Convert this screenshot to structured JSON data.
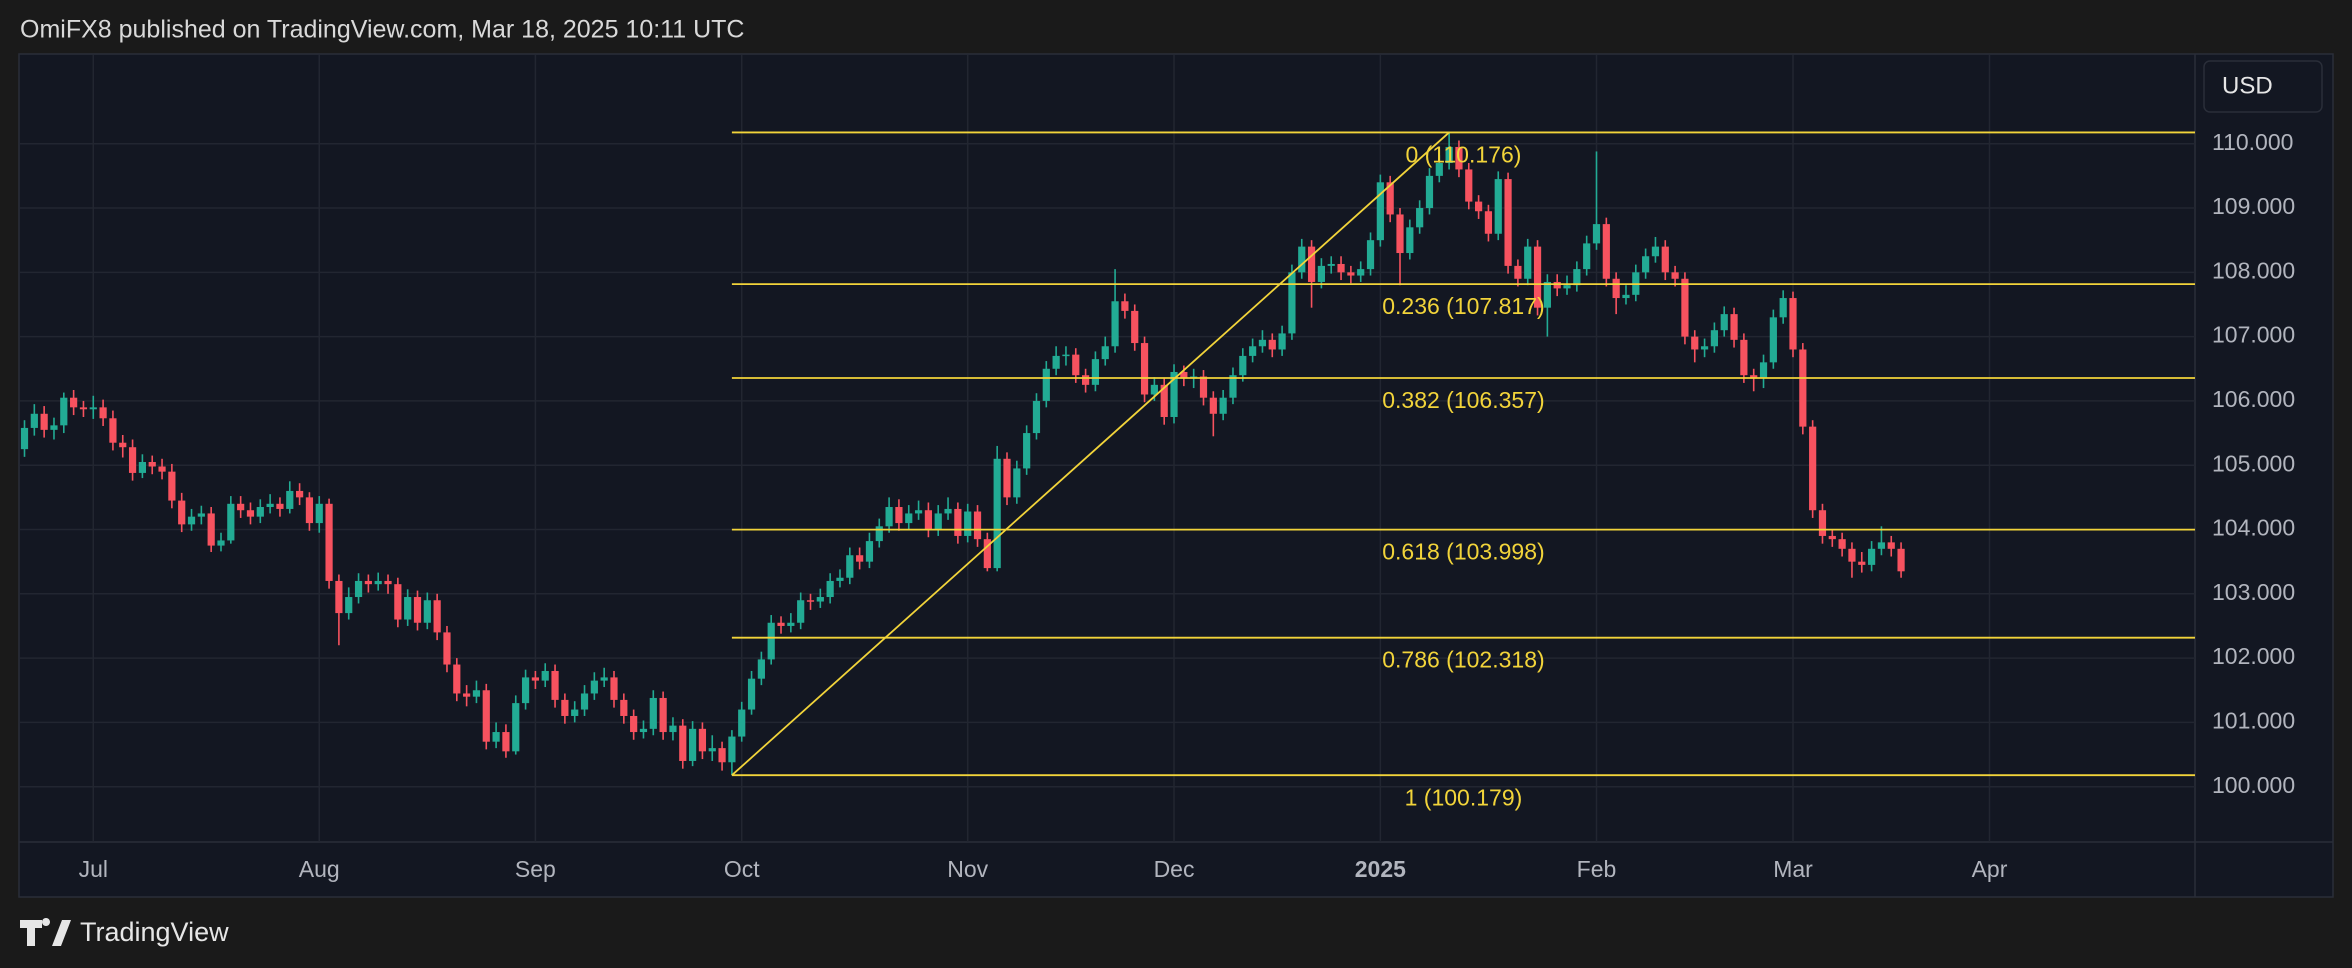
{
  "header": {
    "publisher": "OmiFX8 published on TradingView.com, Mar 18, 2025 10:11 UTC"
  },
  "currency": "USD",
  "footer": {
    "brand": "TradingView"
  },
  "chart_data": {
    "type": "candlestick",
    "up_color": "#22ab94",
    "down_color": "#f7525f",
    "fib_color": "#f2d43a",
    "grid": true,
    "ylim": [
      99.14,
      111.38
    ],
    "yticks": [
      {
        "value": 100,
        "label": "100.000"
      },
      {
        "value": 101,
        "label": "101.000"
      },
      {
        "value": 102,
        "label": "102.000"
      },
      {
        "value": 103,
        "label": "103.000"
      },
      {
        "value": 104,
        "label": "104.000"
      },
      {
        "value": 105,
        "label": "105.000"
      },
      {
        "value": 106,
        "label": "106.000"
      },
      {
        "value": 107,
        "label": "107.000"
      },
      {
        "value": 108,
        "label": "108.000"
      },
      {
        "value": 109,
        "label": "109.000"
      },
      {
        "value": 110,
        "label": "110.000"
      }
    ],
    "fib_levels": [
      {
        "value": 110.176,
        "label": "0 (110.176)"
      },
      {
        "value": 107.817,
        "label": "0.236 (107.817)"
      },
      {
        "value": 106.357,
        "label": "0.382 (106.357)"
      },
      {
        "value": 103.998,
        "label": "0.618 (103.998)"
      },
      {
        "value": 102.318,
        "label": "0.786 (102.318)"
      },
      {
        "value": 100.179,
        "label": "1 (100.179)"
      }
    ],
    "categories": [
      null,
      null,
      null,
      null,
      null,
      null,
      null,
      "Jul",
      null,
      null,
      null,
      null,
      null,
      null,
      null,
      null,
      null,
      null,
      null,
      null,
      null,
      null,
      null,
      null,
      null,
      null,
      null,
      null,
      null,
      null,
      "Aug",
      null,
      null,
      null,
      null,
      null,
      null,
      null,
      null,
      null,
      null,
      null,
      null,
      null,
      null,
      null,
      null,
      null,
      null,
      null,
      null,
      null,
      "Sep",
      null,
      null,
      null,
      null,
      null,
      null,
      null,
      null,
      null,
      null,
      null,
      null,
      null,
      null,
      null,
      null,
      null,
      null,
      null,
      null,
      "Oct",
      null,
      null,
      null,
      null,
      null,
      null,
      null,
      null,
      null,
      null,
      null,
      null,
      null,
      null,
      null,
      null,
      null,
      null,
      null,
      null,
      null,
      null,
      "Nov",
      null,
      null,
      null,
      null,
      null,
      null,
      null,
      null,
      null,
      null,
      null,
      null,
      null,
      null,
      null,
      null,
      null,
      null,
      null,
      null,
      "Dec",
      null,
      null,
      null,
      null,
      null,
      null,
      null,
      null,
      null,
      null,
      null,
      null,
      null,
      null,
      null,
      null,
      null,
      null,
      null,
      null,
      "2025",
      null,
      null,
      null,
      null,
      null,
      null,
      null,
      null,
      null,
      null,
      null,
      null,
      null,
      null,
      null,
      null,
      null,
      null,
      null,
      null,
      null,
      "Feb",
      null,
      null,
      null,
      null,
      null,
      null,
      null,
      null,
      null,
      null,
      null,
      null,
      null,
      null,
      null,
      null,
      null,
      null,
      null,
      "Mar",
      null,
      null,
      null,
      null,
      null,
      null,
      null,
      null,
      null,
      null,
      null,
      null,
      null,
      null,
      null,
      null,
      null,
      null,
      null,
      "Apr"
    ],
    "candles": [
      [
        105.25,
        105.7,
        105.13,
        105.58
      ],
      [
        105.58,
        105.95,
        105.46,
        105.8
      ],
      [
        105.8,
        105.92,
        105.43,
        105.55
      ],
      [
        105.55,
        105.74,
        105.4,
        105.62
      ],
      [
        105.62,
        106.13,
        105.5,
        106.05
      ],
      [
        106.05,
        106.17,
        105.78,
        105.9
      ],
      [
        105.9,
        106.0,
        105.75,
        105.87
      ],
      [
        105.87,
        106.08,
        105.72,
        105.9
      ],
      [
        105.9,
        106.02,
        105.61,
        105.73
      ],
      [
        105.73,
        105.85,
        105.23,
        105.35
      ],
      [
        105.35,
        105.47,
        105.12,
        105.28
      ],
      [
        105.28,
        105.4,
        104.76,
        104.88
      ],
      [
        104.88,
        105.17,
        104.8,
        105.05
      ],
      [
        105.05,
        105.15,
        104.86,
        104.98
      ],
      [
        104.98,
        105.1,
        104.78,
        104.9
      ],
      [
        104.9,
        105.02,
        104.33,
        104.45
      ],
      [
        104.45,
        104.57,
        103.96,
        104.08
      ],
      [
        104.08,
        104.32,
        103.98,
        104.2
      ],
      [
        104.2,
        104.37,
        104.08,
        104.25
      ],
      [
        104.25,
        104.35,
        103.65,
        103.75
      ],
      [
        103.75,
        103.95,
        103.66,
        103.83
      ],
      [
        103.83,
        104.52,
        103.78,
        104.4
      ],
      [
        104.4,
        104.52,
        104.18,
        104.3
      ],
      [
        104.3,
        104.42,
        104.08,
        104.2
      ],
      [
        104.2,
        104.47,
        104.1,
        104.35
      ],
      [
        104.35,
        104.55,
        104.25,
        104.4
      ],
      [
        104.4,
        104.5,
        104.2,
        104.32
      ],
      [
        104.32,
        104.75,
        104.25,
        104.6
      ],
      [
        104.6,
        104.72,
        104.38,
        104.5
      ],
      [
        104.5,
        104.58,
        103.98,
        104.1
      ],
      [
        104.1,
        104.52,
        103.95,
        104.4
      ],
      [
        104.4,
        104.48,
        103.08,
        103.2
      ],
      [
        103.2,
        103.3,
        102.2,
        102.7
      ],
      [
        102.7,
        103.1,
        102.6,
        102.95
      ],
      [
        102.95,
        103.32,
        102.85,
        103.2
      ],
      [
        103.2,
        103.3,
        103.02,
        103.15
      ],
      [
        103.15,
        103.33,
        103.05,
        103.2
      ],
      [
        103.2,
        103.3,
        103.0,
        103.15
      ],
      [
        103.15,
        103.25,
        102.48,
        102.6
      ],
      [
        102.6,
        103.07,
        102.5,
        102.95
      ],
      [
        102.95,
        103.05,
        102.43,
        102.55
      ],
      [
        102.55,
        103.02,
        102.45,
        102.9
      ],
      [
        102.9,
        103.0,
        102.28,
        102.4
      ],
      [
        102.4,
        102.5,
        101.78,
        101.9
      ],
      [
        101.9,
        102.0,
        101.33,
        101.45
      ],
      [
        101.45,
        101.58,
        101.25,
        101.4
      ],
      [
        101.4,
        101.65,
        101.3,
        101.5
      ],
      [
        101.5,
        101.6,
        100.58,
        100.7
      ],
      [
        100.7,
        101.0,
        100.6,
        100.85
      ],
      [
        100.85,
        100.97,
        100.45,
        100.55
      ],
      [
        100.55,
        101.42,
        100.5,
        101.3
      ],
      [
        101.3,
        101.82,
        101.2,
        101.7
      ],
      [
        101.7,
        101.8,
        101.52,
        101.65
      ],
      [
        101.65,
        101.92,
        101.55,
        101.8
      ],
      [
        101.8,
        101.9,
        101.23,
        101.35
      ],
      [
        101.35,
        101.45,
        100.98,
        101.1
      ],
      [
        101.1,
        101.33,
        101.0,
        101.2
      ],
      [
        101.2,
        101.58,
        101.1,
        101.45
      ],
      [
        101.45,
        101.78,
        101.35,
        101.65
      ],
      [
        101.65,
        101.85,
        101.55,
        101.7
      ],
      [
        101.7,
        101.8,
        101.23,
        101.35
      ],
      [
        101.35,
        101.45,
        100.98,
        101.1
      ],
      [
        101.1,
        101.2,
        100.73,
        100.85
      ],
      [
        100.85,
        101.03,
        100.75,
        100.9
      ],
      [
        100.9,
        101.5,
        100.8,
        101.38
      ],
      [
        101.38,
        101.48,
        100.73,
        100.85
      ],
      [
        100.85,
        101.08,
        100.72,
        100.95
      ],
      [
        100.95,
        101.05,
        100.28,
        100.4
      ],
      [
        100.4,
        101.02,
        100.32,
        100.9
      ],
      [
        100.9,
        101.0,
        100.43,
        100.55
      ],
      [
        100.55,
        100.8,
        100.4,
        100.6
      ],
      [
        100.6,
        100.7,
        100.25,
        100.38
      ],
      [
        100.38,
        100.88,
        100.18,
        100.78
      ],
      [
        100.78,
        101.32,
        100.7,
        101.2
      ],
      [
        101.2,
        101.8,
        101.12,
        101.68
      ],
      [
        101.68,
        102.1,
        101.58,
        101.98
      ],
      [
        101.98,
        102.67,
        101.9,
        102.55
      ],
      [
        102.55,
        102.65,
        102.38,
        102.5
      ],
      [
        102.5,
        102.7,
        102.4,
        102.55
      ],
      [
        102.55,
        103.02,
        102.45,
        102.9
      ],
      [
        102.9,
        103.0,
        102.75,
        102.88
      ],
      [
        102.88,
        103.08,
        102.78,
        102.95
      ],
      [
        102.95,
        103.32,
        102.85,
        103.2
      ],
      [
        103.2,
        103.38,
        103.1,
        103.25
      ],
      [
        103.25,
        103.72,
        103.15,
        103.6
      ],
      [
        103.6,
        103.72,
        103.38,
        103.5
      ],
      [
        103.5,
        103.95,
        103.4,
        103.82
      ],
      [
        103.82,
        104.17,
        103.72,
        104.05
      ],
      [
        104.05,
        104.5,
        103.95,
        104.35
      ],
      [
        104.35,
        104.47,
        103.98,
        104.1
      ],
      [
        104.1,
        104.38,
        104.0,
        104.25
      ],
      [
        104.25,
        104.45,
        104.15,
        104.3
      ],
      [
        104.3,
        104.42,
        103.88,
        104.0
      ],
      [
        104.0,
        104.38,
        103.9,
        104.25
      ],
      [
        104.25,
        104.5,
        104.15,
        104.32
      ],
      [
        104.32,
        104.42,
        103.78,
        103.9
      ],
      [
        103.9,
        104.4,
        103.8,
        104.28
      ],
      [
        104.28,
        104.38,
        103.73,
        103.85
      ],
      [
        103.85,
        103.95,
        103.35,
        103.4
      ],
      [
        103.4,
        105.3,
        103.35,
        105.1
      ],
      [
        105.1,
        105.2,
        104.38,
        104.5
      ],
      [
        104.5,
        105.07,
        104.4,
        104.95
      ],
      [
        104.95,
        105.62,
        104.85,
        105.5
      ],
      [
        105.5,
        106.12,
        105.4,
        106.0
      ],
      [
        106.0,
        106.62,
        105.9,
        106.5
      ],
      [
        106.5,
        106.85,
        106.4,
        106.7
      ],
      [
        106.7,
        106.85,
        106.55,
        106.72
      ],
      [
        106.72,
        106.82,
        106.28,
        106.4
      ],
      [
        106.4,
        106.5,
        106.13,
        106.25
      ],
      [
        106.25,
        106.77,
        106.15,
        106.65
      ],
      [
        106.65,
        107.0,
        106.55,
        106.85
      ],
      [
        106.85,
        108.05,
        106.75,
        107.55
      ],
      [
        107.55,
        107.67,
        107.28,
        107.4
      ],
      [
        107.4,
        107.5,
        106.78,
        106.9
      ],
      [
        106.9,
        107.0,
        105.98,
        106.1
      ],
      [
        106.1,
        106.37,
        106.0,
        106.25
      ],
      [
        106.25,
        106.35,
        105.63,
        105.75
      ],
      [
        105.75,
        106.57,
        105.65,
        106.45
      ],
      [
        106.45,
        106.55,
        106.23,
        106.35
      ],
      [
        106.35,
        106.5,
        106.2,
        106.38
      ],
      [
        106.38,
        106.48,
        105.93,
        106.05
      ],
      [
        106.05,
        106.15,
        105.45,
        105.8
      ],
      [
        105.8,
        106.17,
        105.7,
        106.05
      ],
      [
        106.05,
        106.52,
        105.95,
        106.4
      ],
      [
        106.4,
        106.82,
        106.3,
        106.7
      ],
      [
        106.7,
        106.97,
        106.6,
        106.85
      ],
      [
        106.85,
        107.1,
        106.75,
        106.95
      ],
      [
        106.95,
        107.05,
        106.68,
        106.8
      ],
      [
        106.8,
        107.17,
        106.7,
        107.05
      ],
      [
        107.05,
        108.12,
        106.95,
        108.0
      ],
      [
        108.0,
        108.52,
        107.9,
        108.4
      ],
      [
        108.4,
        108.5,
        107.45,
        107.85
      ],
      [
        107.85,
        108.22,
        107.75,
        108.1
      ],
      [
        108.1,
        108.25,
        107.98,
        108.13
      ],
      [
        108.13,
        108.25,
        107.88,
        108.0
      ],
      [
        108.0,
        108.1,
        107.83,
        107.95
      ],
      [
        107.95,
        108.17,
        107.85,
        108.05
      ],
      [
        108.05,
        108.62,
        107.95,
        108.5
      ],
      [
        108.5,
        109.52,
        108.4,
        109.4
      ],
      [
        109.4,
        109.5,
        108.78,
        108.9
      ],
      [
        108.9,
        109.0,
        107.8,
        108.3
      ],
      [
        108.3,
        108.82,
        108.2,
        108.7
      ],
      [
        108.7,
        109.12,
        108.6,
        109.0
      ],
      [
        109.0,
        109.62,
        108.9,
        109.5
      ],
      [
        109.5,
        109.82,
        109.4,
        109.7
      ],
      [
        109.7,
        110.18,
        109.6,
        109.95
      ],
      [
        109.95,
        110.05,
        109.48,
        109.6
      ],
      [
        109.6,
        109.7,
        108.98,
        109.1
      ],
      [
        109.1,
        109.2,
        108.83,
        108.95
      ],
      [
        108.95,
        109.05,
        108.48,
        108.6
      ],
      [
        108.6,
        109.57,
        108.5,
        109.45
      ],
      [
        109.45,
        109.55,
        107.98,
        108.1
      ],
      [
        108.1,
        108.2,
        107.78,
        107.9
      ],
      [
        107.9,
        108.52,
        107.8,
        108.4
      ],
      [
        108.4,
        108.5,
        107.33,
        107.45
      ],
      [
        107.45,
        107.97,
        107.0,
        107.85
      ],
      [
        107.85,
        107.97,
        107.63,
        107.75
      ],
      [
        107.75,
        107.95,
        107.65,
        107.8
      ],
      [
        107.8,
        108.17,
        107.7,
        108.05
      ],
      [
        108.05,
        108.57,
        107.95,
        108.45
      ],
      [
        108.45,
        109.88,
        108.35,
        108.75
      ],
      [
        108.75,
        108.85,
        107.78,
        107.9
      ],
      [
        107.9,
        108.0,
        107.35,
        107.6
      ],
      [
        107.6,
        107.8,
        107.5,
        107.65
      ],
      [
        107.65,
        108.12,
        107.55,
        108.0
      ],
      [
        108.0,
        108.37,
        107.9,
        108.25
      ],
      [
        108.25,
        108.55,
        108.15,
        108.4
      ],
      [
        108.4,
        108.5,
        107.88,
        108.0
      ],
      [
        108.0,
        108.1,
        107.78,
        107.9
      ],
      [
        107.9,
        108.0,
        106.88,
        107.0
      ],
      [
        107.0,
        107.1,
        106.6,
        106.8
      ],
      [
        106.8,
        106.97,
        106.68,
        106.85
      ],
      [
        106.85,
        107.22,
        106.75,
        107.1
      ],
      [
        107.1,
        107.47,
        107.0,
        107.35
      ],
      [
        107.35,
        107.45,
        106.83,
        106.95
      ],
      [
        106.95,
        107.05,
        106.28,
        106.4
      ],
      [
        106.4,
        106.5,
        106.15,
        106.35
      ],
      [
        106.35,
        106.72,
        106.2,
        106.6
      ],
      [
        106.6,
        107.42,
        106.5,
        107.3
      ],
      [
        107.3,
        107.72,
        107.2,
        107.6
      ],
      [
        107.6,
        107.7,
        106.68,
        106.8
      ],
      [
        106.8,
        106.9,
        105.48,
        105.6
      ],
      [
        105.6,
        105.7,
        104.18,
        104.3
      ],
      [
        104.3,
        104.4,
        103.78,
        103.9
      ],
      [
        103.9,
        104.0,
        103.73,
        103.85
      ],
      [
        103.85,
        103.95,
        103.58,
        103.7
      ],
      [
        103.7,
        103.8,
        103.25,
        103.5
      ],
      [
        103.5,
        103.65,
        103.33,
        103.45
      ],
      [
        103.45,
        103.82,
        103.35,
        103.7
      ],
      [
        103.7,
        104.05,
        103.6,
        103.8
      ],
      [
        103.8,
        103.9,
        103.58,
        103.7
      ],
      [
        103.7,
        103.8,
        103.25,
        103.35
      ],
      null,
      null,
      null,
      null,
      null,
      null,
      null,
      null,
      null,
      null
    ]
  }
}
